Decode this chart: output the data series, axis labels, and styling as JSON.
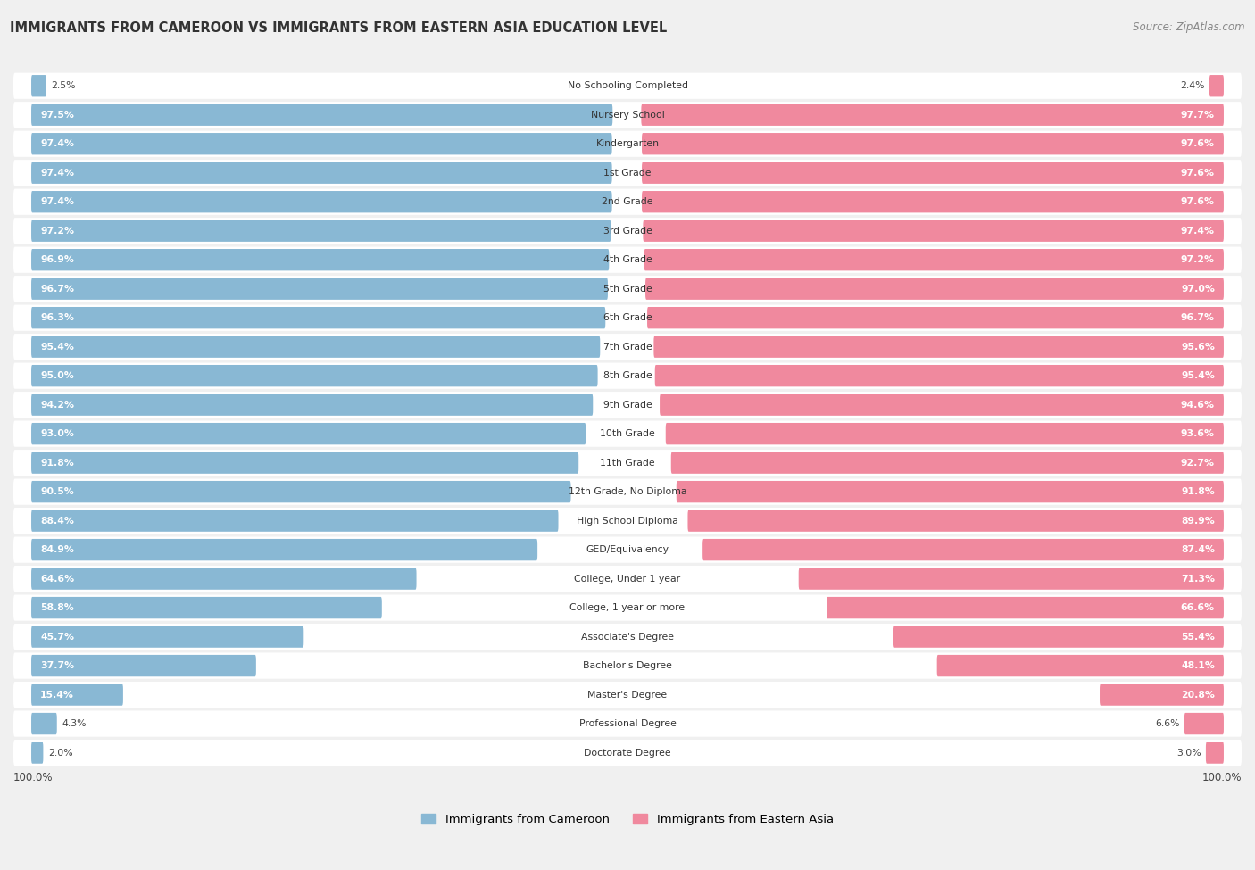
{
  "title": "IMMIGRANTS FROM CAMEROON VS IMMIGRANTS FROM EASTERN ASIA EDUCATION LEVEL",
  "source": "Source: ZipAtlas.com",
  "categories": [
    "No Schooling Completed",
    "Nursery School",
    "Kindergarten",
    "1st Grade",
    "2nd Grade",
    "3rd Grade",
    "4th Grade",
    "5th Grade",
    "6th Grade",
    "7th Grade",
    "8th Grade",
    "9th Grade",
    "10th Grade",
    "11th Grade",
    "12th Grade, No Diploma",
    "High School Diploma",
    "GED/Equivalency",
    "College, Under 1 year",
    "College, 1 year or more",
    "Associate's Degree",
    "Bachelor's Degree",
    "Master's Degree",
    "Professional Degree",
    "Doctorate Degree"
  ],
  "cameroon": [
    2.5,
    97.5,
    97.4,
    97.4,
    97.4,
    97.2,
    96.9,
    96.7,
    96.3,
    95.4,
    95.0,
    94.2,
    93.0,
    91.8,
    90.5,
    88.4,
    84.9,
    64.6,
    58.8,
    45.7,
    37.7,
    15.4,
    4.3,
    2.0
  ],
  "eastern_asia": [
    2.4,
    97.7,
    97.6,
    97.6,
    97.6,
    97.4,
    97.2,
    97.0,
    96.7,
    95.6,
    95.4,
    94.6,
    93.6,
    92.7,
    91.8,
    89.9,
    87.4,
    71.3,
    66.6,
    55.4,
    48.1,
    20.8,
    6.6,
    3.0
  ],
  "cameroon_color": "#89b8d4",
  "eastern_asia_color": "#f0899e",
  "background_color": "#f0f0f0",
  "row_bg_color": "#ffffff",
  "legend_label_cameroon": "Immigrants from Cameroon",
  "legend_label_eastern_asia": "Immigrants from Eastern Asia"
}
